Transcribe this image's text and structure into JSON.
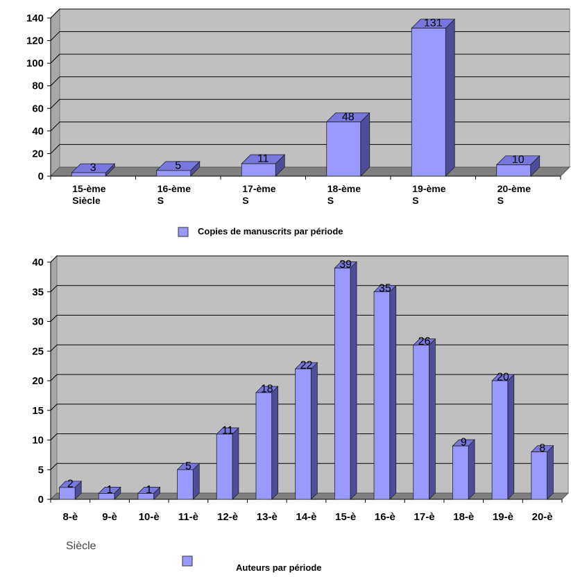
{
  "chart_data": [
    {
      "type": "bar",
      "categories": [
        "15-ème Siècle",
        "16-ème S",
        "17-ème S",
        "18-ème S",
        "19-ème S",
        "20-ème S"
      ],
      "series": [
        {
          "name": "Copies de manuscrits par période",
          "values": [
            3,
            5,
            11,
            48,
            131,
            10
          ]
        }
      ],
      "ylim": [
        0,
        140
      ],
      "yticks": [
        0,
        20,
        40,
        60,
        80,
        100,
        120,
        140
      ],
      "grid": true,
      "legend": "bottom",
      "colors": {
        "bar_front": "#9999ff",
        "bar_side": "#4d4d99",
        "bar_top": "#7777dd",
        "plot_bg": "#c0c0c0",
        "floor": "#808080"
      }
    },
    {
      "type": "bar",
      "categories": [
        "8-è",
        "9-è",
        "10-è",
        "11-è",
        "12-è",
        "13-è",
        "14-è",
        "15-è",
        "16-è",
        "17-è",
        "18-è",
        "19-è",
        "20-è"
      ],
      "series": [
        {
          "name": "Auteurs par période",
          "values": [
            2,
            1,
            1,
            5,
            11,
            18,
            22,
            39,
            35,
            26,
            9,
            20,
            8
          ]
        }
      ],
      "xlabel": "Siècle",
      "ylim": [
        0,
        40
      ],
      "yticks": [
        0,
        5,
        10,
        15,
        20,
        25,
        30,
        35,
        40
      ],
      "grid": true,
      "legend": "bottom",
      "colors": {
        "bar_front": "#9999ff",
        "bar_side": "#4d4d99",
        "bar_top": "#7777dd",
        "plot_bg": "#c0c0c0",
        "floor": "#808080"
      }
    }
  ]
}
